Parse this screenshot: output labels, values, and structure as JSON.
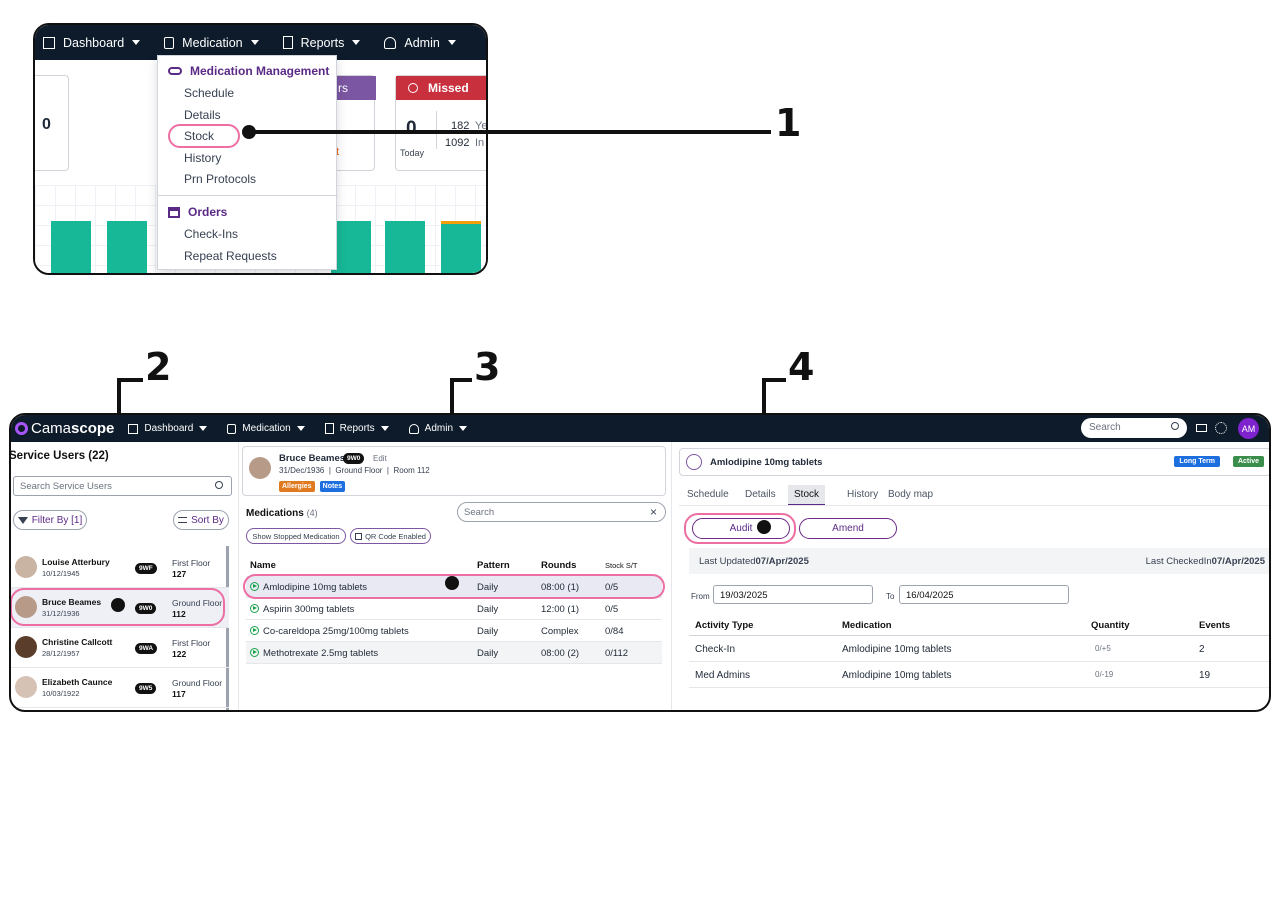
{
  "markers": [
    "1",
    "2",
    "3",
    "4"
  ],
  "top_nav": {
    "dashboard": "Dashboard",
    "medication": "Medication",
    "reports": "Reports",
    "admin": "Admin"
  },
  "top_cards": {
    "purple_title_fragment": "rs",
    "missed_title": "Missed",
    "left_value": "0",
    "orange_fragment": "t",
    "missed_today_value": "0",
    "missed_today_label": "Today",
    "missed_stat1": "182",
    "missed_stat1_suffix": "Ye",
    "missed_stat2": "1092",
    "missed_stat2_suffix": "In"
  },
  "dropdown": {
    "management_heading": "Medication Management",
    "management_items": [
      "Schedule",
      "Details",
      "Stock",
      "History",
      "Prn Protocols"
    ],
    "orders_heading": "Orders",
    "orders_items": [
      "Check-Ins",
      "Repeat Requests"
    ]
  },
  "app": {
    "logo_light": "Cama",
    "logo_bold": "scope",
    "nav": {
      "dashboard": "Dashboard",
      "medication": "Medication",
      "reports": "Reports",
      "admin": "Admin"
    },
    "search_placeholder": "Search",
    "user_initials": "AM"
  },
  "service_users": {
    "title": "Service Users (22)",
    "search_placeholder": "Search Service Users",
    "filter_label": "Filter By [1]",
    "sort_label": "Sort By",
    "items": [
      {
        "name": "Louise Atterbury",
        "dob": "10/12/1945",
        "badge": "9WF",
        "floor": "First Floor",
        "room": "127"
      },
      {
        "name": "Bruce Beames",
        "dob": "31/12/1936",
        "badge": "9W0",
        "floor": "Ground Floor",
        "room": "112"
      },
      {
        "name": "Christine Callcott",
        "dob": "28/12/1957",
        "badge": "9WA",
        "floor": "First Floor",
        "room": "122"
      },
      {
        "name": "Elizabeth Caunce",
        "dob": "10/03/1922",
        "badge": "9W5",
        "floor": "Ground Floor",
        "room": "117"
      }
    ]
  },
  "patient": {
    "name": "Bruce Beames",
    "badge": "9W0",
    "edit": "Edit",
    "details": "31/Dec/1936  |  Ground Floor  |  Room 112",
    "allergies": "Allergies",
    "notes": "Notes"
  },
  "medications": {
    "title": "Medications",
    "count": "(4)",
    "search_placeholder": "Search",
    "clear_icon": "×",
    "stopped_btn": "Show Stopped Medication",
    "qr_btn": "QR Code Enabled",
    "columns": [
      "Name",
      "Pattern",
      "Rounds",
      "Stock S/T"
    ],
    "rows": [
      {
        "name": "Amlodipine 10mg tablets",
        "pattern": "Daily",
        "rounds": "08:00 (1)",
        "stock": "0/5"
      },
      {
        "name": "Aspirin 300mg tablets",
        "pattern": "Daily",
        "rounds": "12:00 (1)",
        "stock": "0/5"
      },
      {
        "name": "Co-careldopa 25mg/100mg tablets",
        "pattern": "Daily",
        "rounds": "Complex",
        "stock": "0/84"
      },
      {
        "name": "Methotrexate 2.5mg tablets",
        "pattern": "Daily",
        "rounds": "08:00 (2)",
        "stock": "0/112"
      }
    ]
  },
  "detail": {
    "med_name": "Amlodipine 10mg tablets",
    "long_term": "Long Term",
    "active": "Active",
    "tabs": [
      "Schedule",
      "Details",
      "Stock",
      "History",
      "Body map"
    ],
    "audit_btn": "Audit",
    "amend_btn": "Amend",
    "last_updated_label": "Last Updated",
    "last_updated_value": "07/Apr/2025",
    "last_checked_label": "Last CheckedIn",
    "last_checked_value": "07/Apr/2025",
    "from_label": "From",
    "from_value": "19/03/2025",
    "to_label": "To",
    "to_value": "16/04/2025",
    "columns": [
      "Activity Type",
      "Medication",
      "Quantity",
      "Events"
    ],
    "rows": [
      {
        "type": "Check-In",
        "medication": "Amlodipine 10mg tablets",
        "quantity": "0/+5",
        "events": "2"
      },
      {
        "type": "Med Admins",
        "medication": "Amlodipine 10mg tablets",
        "quantity": "0/-19",
        "events": "19"
      }
    ]
  },
  "colors": {
    "navbar": "#0d1b2a",
    "brand_purple": "#5b2a86",
    "highlight_pink": "#ec6ea2",
    "bar_green": "#17b897",
    "missed_red": "#c9303e",
    "status_green": "#16a34a",
    "long_term_blue": "#1d6fe0"
  }
}
